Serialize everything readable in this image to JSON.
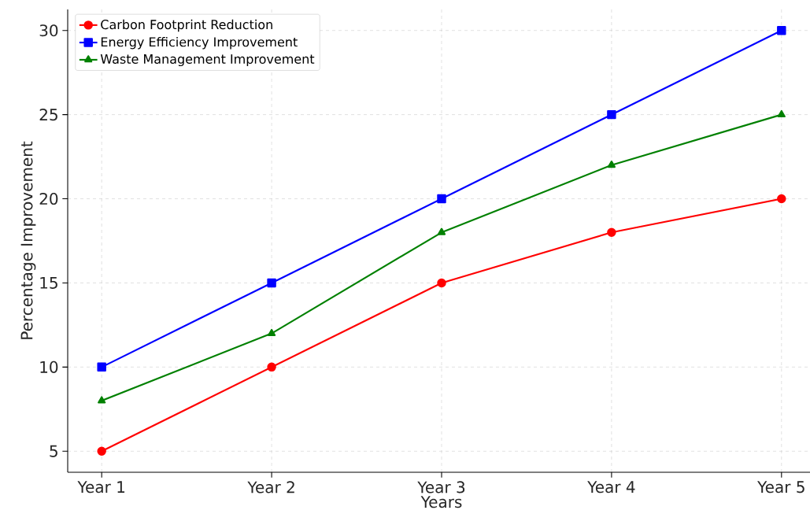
{
  "chart_data": {
    "type": "line",
    "xlabel": "Years",
    "ylabel": "Percentage Improvement",
    "categories": [
      "Year 1",
      "Year 2",
      "Year 3",
      "Year 4",
      "Year 5"
    ],
    "series": [
      {
        "name": "Carbon Footprint Reduction",
        "color": "#ff0000",
        "marker": "circle",
        "values": [
          5,
          10,
          15,
          18,
          20
        ]
      },
      {
        "name": "Energy Efficiency Improvement",
        "color": "#0000ff",
        "marker": "square",
        "values": [
          10,
          15,
          20,
          25,
          30
        ]
      },
      {
        "name": "Waste Management Improvement",
        "color": "#008000",
        "marker": "triangle",
        "values": [
          8,
          12,
          18,
          22,
          25
        ]
      }
    ],
    "ylim": [
      3.75,
      31.25
    ],
    "yticks": [
      5,
      10,
      15,
      20,
      25,
      30
    ],
    "grid": true,
    "legend": "top left",
    "line_style": "solid"
  }
}
